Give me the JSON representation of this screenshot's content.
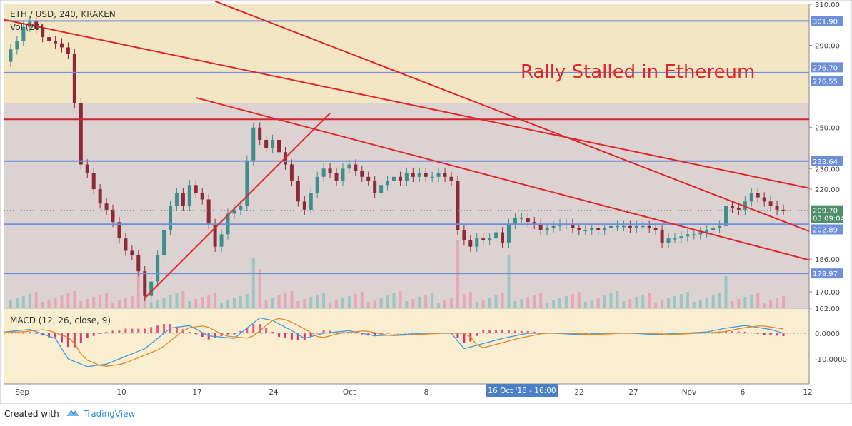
{
  "header": {
    "symbol": "ETH / USD, 240, KRAKEN",
    "volume_label": "Vol (20)",
    "macd_label": "MACD (12, 26, close, 9)"
  },
  "annotation": "Rally Stalled in Ethereum",
  "footer": {
    "created_with": "Created with",
    "brand": "TradingView",
    "logo_icon": "tradingview-cloud-icon"
  },
  "colors": {
    "bg_top": "#f3e6c4",
    "bg_main": "#dcd2d2",
    "bg_macd": "#f9eecf",
    "trend": "#e0262c",
    "hline_blue": "#6d8fdc",
    "up": "#3f8e8e",
    "down": "#8e2a38",
    "vol_up": "#8fc5c0",
    "vol_down": "#e9a1b0"
  },
  "chart_data": [
    {
      "type": "candlestick",
      "title": "ETH / USD, 240, KRAKEN",
      "x_axis": {
        "ticks": [
          "Sep",
          "10",
          "17",
          "24",
          "Oct",
          "8",
          "22",
          "27",
          "Nov",
          "6",
          "12"
        ],
        "crosshair_label": "16 Oct '18 - 16:00"
      },
      "y_axis": {
        "range": [
          162,
          310
        ],
        "ticks": [
          "310.00",
          "301.90",
          "290.00",
          "276.70",
          "276.55",
          "250.00",
          "233.64",
          "230.00",
          "220.00",
          "209.70",
          "03:09:04",
          "202.89",
          "186.00",
          "178.97",
          "170.00",
          "162.00"
        ]
      },
      "horizontal_levels": [
        {
          "value": 301.9,
          "color": "#6d8fdc"
        },
        {
          "value": 276.7,
          "color": "#6d8fdc"
        },
        {
          "value": 254.0,
          "color": "#d0242f"
        },
        {
          "value": 233.64,
          "color": "#6d8fdc"
        },
        {
          "value": 202.89,
          "color": "#6d8fdc"
        },
        {
          "value": 178.97,
          "color": "#6d8fdc"
        }
      ],
      "shaded_zone": [
        262,
        310
      ],
      "trendlines": [
        {
          "from": [
            0,
            302.5
          ],
          "to": [
            126,
            220.5
          ]
        },
        {
          "from": [
            33,
            311.5
          ],
          "to": [
            126,
            199.5
          ]
        },
        {
          "from": [
            30,
            264.5
          ],
          "to": [
            126,
            185.5
          ]
        },
        {
          "from": [
            22,
            167.0
          ],
          "to": [
            51,
            257.0
          ]
        }
      ],
      "last_price": 209.7,
      "price_path": [
        [
          0,
          282
        ],
        [
          1,
          288
        ],
        [
          2,
          292
        ],
        [
          3,
          299
        ],
        [
          4,
          302
        ],
        [
          5,
          298
        ],
        [
          6,
          294
        ],
        [
          7,
          292
        ],
        [
          8,
          291
        ],
        [
          9,
          289
        ],
        [
          10,
          286
        ],
        [
          11,
          262
        ],
        [
          12,
          232
        ],
        [
          13,
          228
        ],
        [
          14,
          220
        ],
        [
          15,
          213
        ],
        [
          16,
          210
        ],
        [
          17,
          204
        ],
        [
          18,
          196
        ],
        [
          19,
          190
        ],
        [
          20,
          188
        ],
        [
          21,
          180
        ],
        [
          22,
          168
        ],
        [
          23,
          175
        ],
        [
          24,
          188
        ],
        [
          25,
          200
        ],
        [
          26,
          212
        ],
        [
          27,
          218
        ],
        [
          28,
          212
        ],
        [
          29,
          222
        ],
        [
          30,
          218
        ],
        [
          31,
          215
        ],
        [
          32,
          203
        ],
        [
          33,
          192
        ],
        [
          34,
          198
        ],
        [
          35,
          208
        ],
        [
          36,
          210
        ],
        [
          37,
          212
        ],
        [
          38,
          234
        ],
        [
          39,
          250
        ],
        [
          40,
          244
        ],
        [
          41,
          240
        ],
        [
          42,
          244
        ],
        [
          43,
          238
        ],
        [
          44,
          232
        ],
        [
          45,
          224
        ],
        [
          46,
          214
        ],
        [
          47,
          210
        ],
        [
          48,
          218
        ],
        [
          49,
          226
        ],
        [
          50,
          230
        ],
        [
          51,
          228
        ],
        [
          52,
          224
        ],
        [
          53,
          230
        ],
        [
          54,
          232
        ],
        [
          55,
          229
        ],
        [
          56,
          226
        ],
        [
          57,
          224
        ],
        [
          58,
          218
        ],
        [
          59,
          222
        ],
        [
          60,
          224
        ],
        [
          61,
          226
        ],
        [
          62,
          224
        ],
        [
          63,
          228
        ],
        [
          64,
          226
        ],
        [
          65,
          228
        ],
        [
          66,
          226
        ],
        [
          67,
          226
        ],
        [
          68,
          228
        ],
        [
          69,
          226
        ],
        [
          70,
          224
        ],
        [
          71,
          200
        ],
        [
          72,
          195
        ],
        [
          73,
          192
        ],
        [
          74,
          196
        ],
        [
          75,
          195
        ],
        [
          76,
          196
        ],
        [
          77,
          199
        ],
        [
          78,
          194
        ],
        [
          79,
          203
        ],
        [
          80,
          206
        ],
        [
          81,
          206
        ],
        [
          82,
          204
        ],
        [
          83,
          203
        ],
        [
          84,
          200
        ],
        [
          85,
          201
        ],
        [
          86,
          202
        ],
        [
          87,
          203
        ],
        [
          88,
          203
        ],
        [
          89,
          201
        ],
        [
          90,
          200
        ],
        [
          91,
          200
        ],
        [
          92,
          201
        ],
        [
          93,
          200
        ],
        [
          94,
          201
        ],
        [
          95,
          202
        ],
        [
          96,
          202
        ],
        [
          97,
          202
        ],
        [
          98,
          201
        ],
        [
          99,
          202
        ],
        [
          100,
          202
        ],
        [
          101,
          201
        ],
        [
          102,
          200
        ],
        [
          103,
          194
        ],
        [
          104,
          196
        ],
        [
          105,
          196
        ],
        [
          106,
          197
        ],
        [
          107,
          198
        ],
        [
          108,
          198
        ],
        [
          109,
          199
        ],
        [
          110,
          200
        ],
        [
          111,
          201
        ],
        [
          112,
          202
        ],
        [
          113,
          212
        ],
        [
          114,
          211
        ],
        [
          115,
          210
        ],
        [
          116,
          214
        ],
        [
          117,
          218
        ],
        [
          118,
          216
        ],
        [
          119,
          214
        ],
        [
          120,
          212
        ],
        [
          121,
          210
        ],
        [
          122,
          209.7
        ]
      ]
    },
    {
      "type": "bar",
      "title": "Vol (20)",
      "pattern": "volume spikes near 12 Sep, 21 Sep, 9 Oct, 15 Oct and early Nov"
    },
    {
      "type": "line",
      "title": "MACD (12, 26, close, 9)",
      "y_axis": {
        "ticks": [
          "0.0000",
          "-10.0000"
        ]
      },
      "macd_path": [
        [
          0,
          0.5
        ],
        [
          4,
          1.5
        ],
        [
          8,
          -2
        ],
        [
          10,
          -10
        ],
        [
          13,
          -13
        ],
        [
          16,
          -12
        ],
        [
          19,
          -9
        ],
        [
          22,
          -6
        ],
        [
          26,
          2
        ],
        [
          29,
          3
        ],
        [
          32,
          -1
        ],
        [
          36,
          -2
        ],
        [
          40,
          6
        ],
        [
          42,
          5
        ],
        [
          45,
          1
        ],
        [
          47,
          -2
        ],
        [
          50,
          0
        ],
        [
          54,
          1
        ],
        [
          58,
          -1
        ],
        [
          62,
          -0.5
        ],
        [
          66,
          0
        ],
        [
          70,
          0
        ],
        [
          72,
          -6
        ],
        [
          75,
          -4
        ],
        [
          78,
          -2
        ],
        [
          82,
          0
        ],
        [
          86,
          0
        ],
        [
          90,
          -0.5
        ],
        [
          94,
          0
        ],
        [
          98,
          0
        ],
        [
          102,
          -0.5
        ],
        [
          106,
          0
        ],
        [
          110,
          0.5
        ],
        [
          113,
          2
        ],
        [
          116,
          3
        ],
        [
          120,
          1.5
        ],
        [
          122,
          0
        ]
      ]
    }
  ]
}
